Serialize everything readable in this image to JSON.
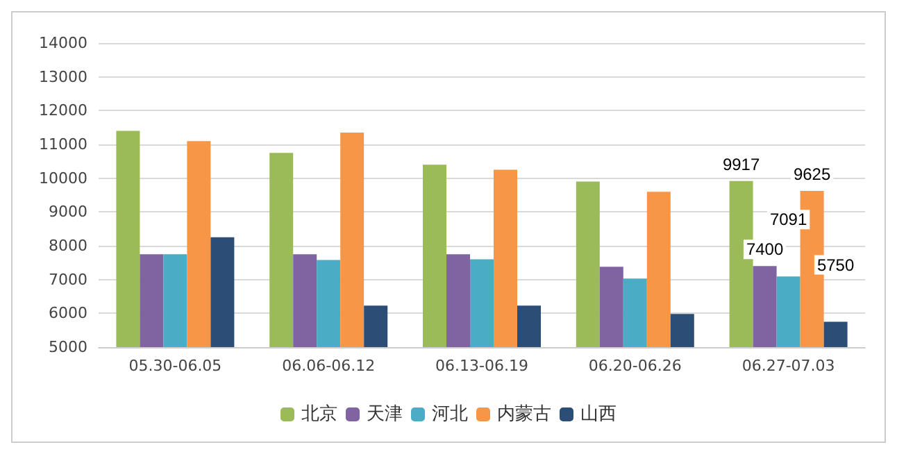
{
  "chart_data": {
    "type": "bar",
    "categories": [
      "05.30-06.05",
      "06.06-06.12",
      "06.13-06.19",
      "06.20-06.26",
      "06.27-07.03"
    ],
    "series": [
      {
        "name": "北京",
        "color": "#9bbb59",
        "values": [
          11400,
          10750,
          10400,
          9900,
          9917
        ],
        "value_labels": [
          null,
          null,
          null,
          null,
          "9917"
        ]
      },
      {
        "name": "天津",
        "color": "#8064a2",
        "values": [
          7750,
          7750,
          7750,
          7380,
          7400
        ],
        "value_labels": [
          null,
          null,
          null,
          null,
          "7400"
        ]
      },
      {
        "name": "河北",
        "color": "#4bacc6",
        "values": [
          7750,
          7580,
          7600,
          7030,
          7091
        ],
        "value_labels": [
          null,
          null,
          null,
          null,
          "7091"
        ]
      },
      {
        "name": "内蒙古",
        "color": "#f79646",
        "values": [
          11100,
          11350,
          10250,
          9600,
          9625
        ],
        "value_labels": [
          null,
          null,
          null,
          null,
          "9625"
        ]
      },
      {
        "name": "山西",
        "color": "#2c4d75",
        "values": [
          8250,
          6230,
          6230,
          5980,
          5750
        ],
        "value_labels": [
          null,
          null,
          null,
          null,
          "5750"
        ]
      }
    ],
    "ylim": [
      5000,
      14000
    ],
    "yticks": [
      5000,
      6000,
      7000,
      8000,
      9000,
      10000,
      11000,
      12000,
      13000,
      14000
    ],
    "grid": "y",
    "legend": "bottom"
  }
}
